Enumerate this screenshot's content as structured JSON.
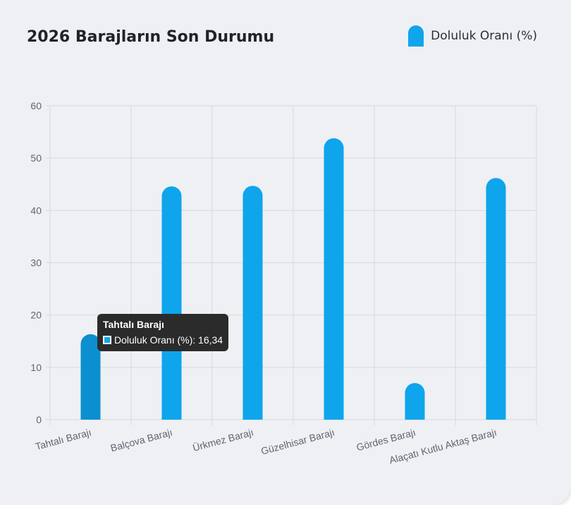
{
  "card": {
    "title": "2026 Barajların Son Durumu"
  },
  "colors": {
    "bar": "#0ea5ec",
    "bar_active": "#0b8fd0",
    "grid": "#d6d9de",
    "axis_text": "#5f6670"
  },
  "tooltip": {
    "title": "Tahtalı Barajı",
    "row": "Doluluk Oranı (%): 16,34"
  },
  "chart_data": {
    "type": "bar",
    "categories": [
      "Tahtalı Barajı",
      "Balçova Barajı",
      "Ürkmez Barajı",
      "Güzelhisar Barajı",
      "Gördes Barajı",
      "Alaçatı Kutlu Aktaş Barajı"
    ],
    "series": [
      {
        "name": "Doluluk Oranı (%)",
        "values": [
          16.34,
          44.6,
          44.7,
          53.8,
          7.0,
          46.2
        ]
      }
    ],
    "ylim": [
      0,
      60
    ],
    "yticks": [
      0,
      10,
      20,
      30,
      40,
      50,
      60
    ],
    "legend_position": "top-right",
    "grid": true,
    "active_index": 0
  }
}
